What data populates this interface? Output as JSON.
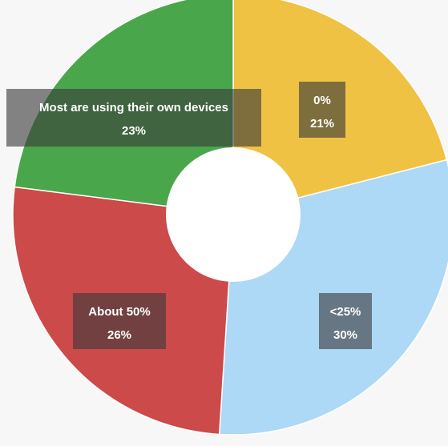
{
  "chart_data": {
    "type": "pie",
    "donut": true,
    "title": "",
    "slices": [
      {
        "label": "0%",
        "value": 21,
        "display": "21%",
        "color": "#f0c243"
      },
      {
        "label": "<25%",
        "value": 30,
        "display": "30%",
        "color": "#add8f6"
      },
      {
        "label": "About 50%",
        "value": 26,
        "display": "26%",
        "color": "#cc4a4a"
      },
      {
        "label": "Most are using their own devices",
        "value": 23,
        "display": "23%",
        "color": "#4aa64a"
      }
    ]
  }
}
